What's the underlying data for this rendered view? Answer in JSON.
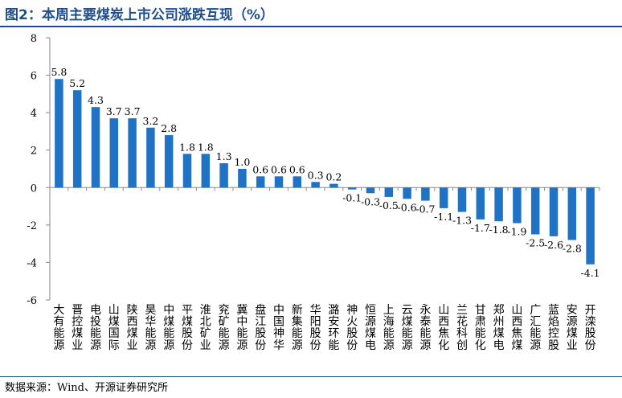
{
  "title": "图2：本周主要煤炭上市公司涨跌互现（%）",
  "source": "数据来源：Wind、开源证券研究所",
  "colors": {
    "bar": "#1f72c4",
    "accent": "#1f4e8c"
  },
  "chart_data": {
    "type": "bar",
    "title": "图2：本周主要煤炭上市公司涨跌互现（%）",
    "xlabel": "",
    "ylabel": "",
    "ylim": [
      -6,
      8
    ],
    "yticks": [
      -6,
      -4,
      -2,
      0,
      2,
      4,
      6,
      8
    ],
    "grid": false,
    "legend": "none",
    "categories": [
      "大有能源",
      "晋控煤业",
      "电投能源",
      "山煤国际",
      "陕西煤业",
      "昊华能源",
      "中煤能源",
      "平煤股份",
      "淮北矿业",
      "兖矿能源",
      "冀中能源",
      "盘江股份",
      "中国神华",
      "新集能源",
      "华阳股份",
      "潞安环能",
      "神火股份",
      "恒源煤电",
      "上海能源",
      "云煤能源",
      "永泰能源",
      "山西焦化",
      "兰花科创",
      "甘肃能化",
      "郑州煤电",
      "山西焦煤",
      "广汇能源",
      "蓝焰控股",
      "安源煤业",
      "开滦股份"
    ],
    "values": [
      5.8,
      5.2,
      4.3,
      3.7,
      3.7,
      3.2,
      2.8,
      1.8,
      1.8,
      1.3,
      1.0,
      0.6,
      0.6,
      0.6,
      0.3,
      0.2,
      -0.1,
      -0.3,
      -0.5,
      -0.6,
      -0.7,
      -1.1,
      -1.3,
      -1.7,
      -1.8,
      -1.9,
      -2.5,
      -2.6,
      -2.8,
      -4.1
    ],
    "labels": [
      "5.8",
      "5.2",
      "4.3",
      "3.7",
      "3.7",
      "3.2",
      "2.8",
      "1.8",
      "1.8",
      "1.3",
      "1.0",
      "0.6",
      "0.6",
      "0.6",
      "0.3",
      "0.2",
      "-0.1",
      "-0.3",
      "-0.5",
      "-0.6",
      "-0.7",
      "-1.1",
      "-1.3",
      "-1.7",
      "-1.8",
      "-1.9",
      "-2.5",
      "-2.6",
      "-2.8",
      "-4.1"
    ]
  }
}
